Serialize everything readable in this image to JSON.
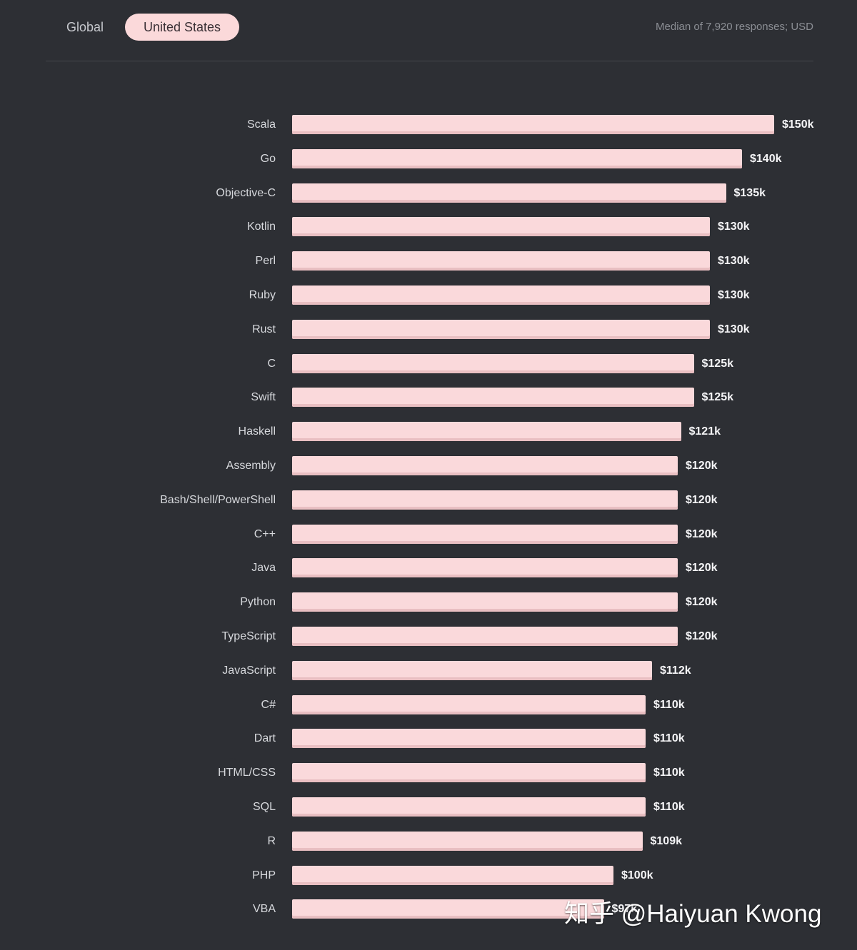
{
  "tabs": {
    "global_label": "Global",
    "us_label": "United States"
  },
  "meta_text": "Median of 7,920 responses; USD",
  "watermark_text": "知乎 @Haiyuan Kwong",
  "colors": {
    "background": "#2d2f34",
    "bar": "#fad9db",
    "active_tab": "#fbd9da"
  },
  "chart_data": {
    "type": "bar",
    "orientation": "horizontal",
    "xlim": [
      0,
      150
    ],
    "categories": [
      "Scala",
      "Go",
      "Objective-C",
      "Kotlin",
      "Perl",
      "Ruby",
      "Rust",
      "C",
      "Swift",
      "Haskell",
      "Assembly",
      "Bash/Shell/PowerShell",
      "C++",
      "Java",
      "Python",
      "TypeScript",
      "JavaScript",
      "C#",
      "Dart",
      "HTML/CSS",
      "SQL",
      "R",
      "PHP",
      "VBA"
    ],
    "values": [
      150,
      140,
      135,
      130,
      130,
      130,
      130,
      125,
      125,
      121,
      120,
      120,
      120,
      120,
      120,
      120,
      112,
      110,
      110,
      110,
      110,
      109,
      100,
      97
    ],
    "data_labels": [
      "$150k",
      "$140k",
      "$135k",
      "$130k",
      "$130k",
      "$130k",
      "$130k",
      "$125k",
      "$125k",
      "$121k",
      "$120k",
      "$120k",
      "$120k",
      "$120k",
      "$120k",
      "$120k",
      "$112k",
      "$110k",
      "$110k",
      "$110k",
      "$110k",
      "$109k",
      "$100k",
      "$97k"
    ]
  }
}
